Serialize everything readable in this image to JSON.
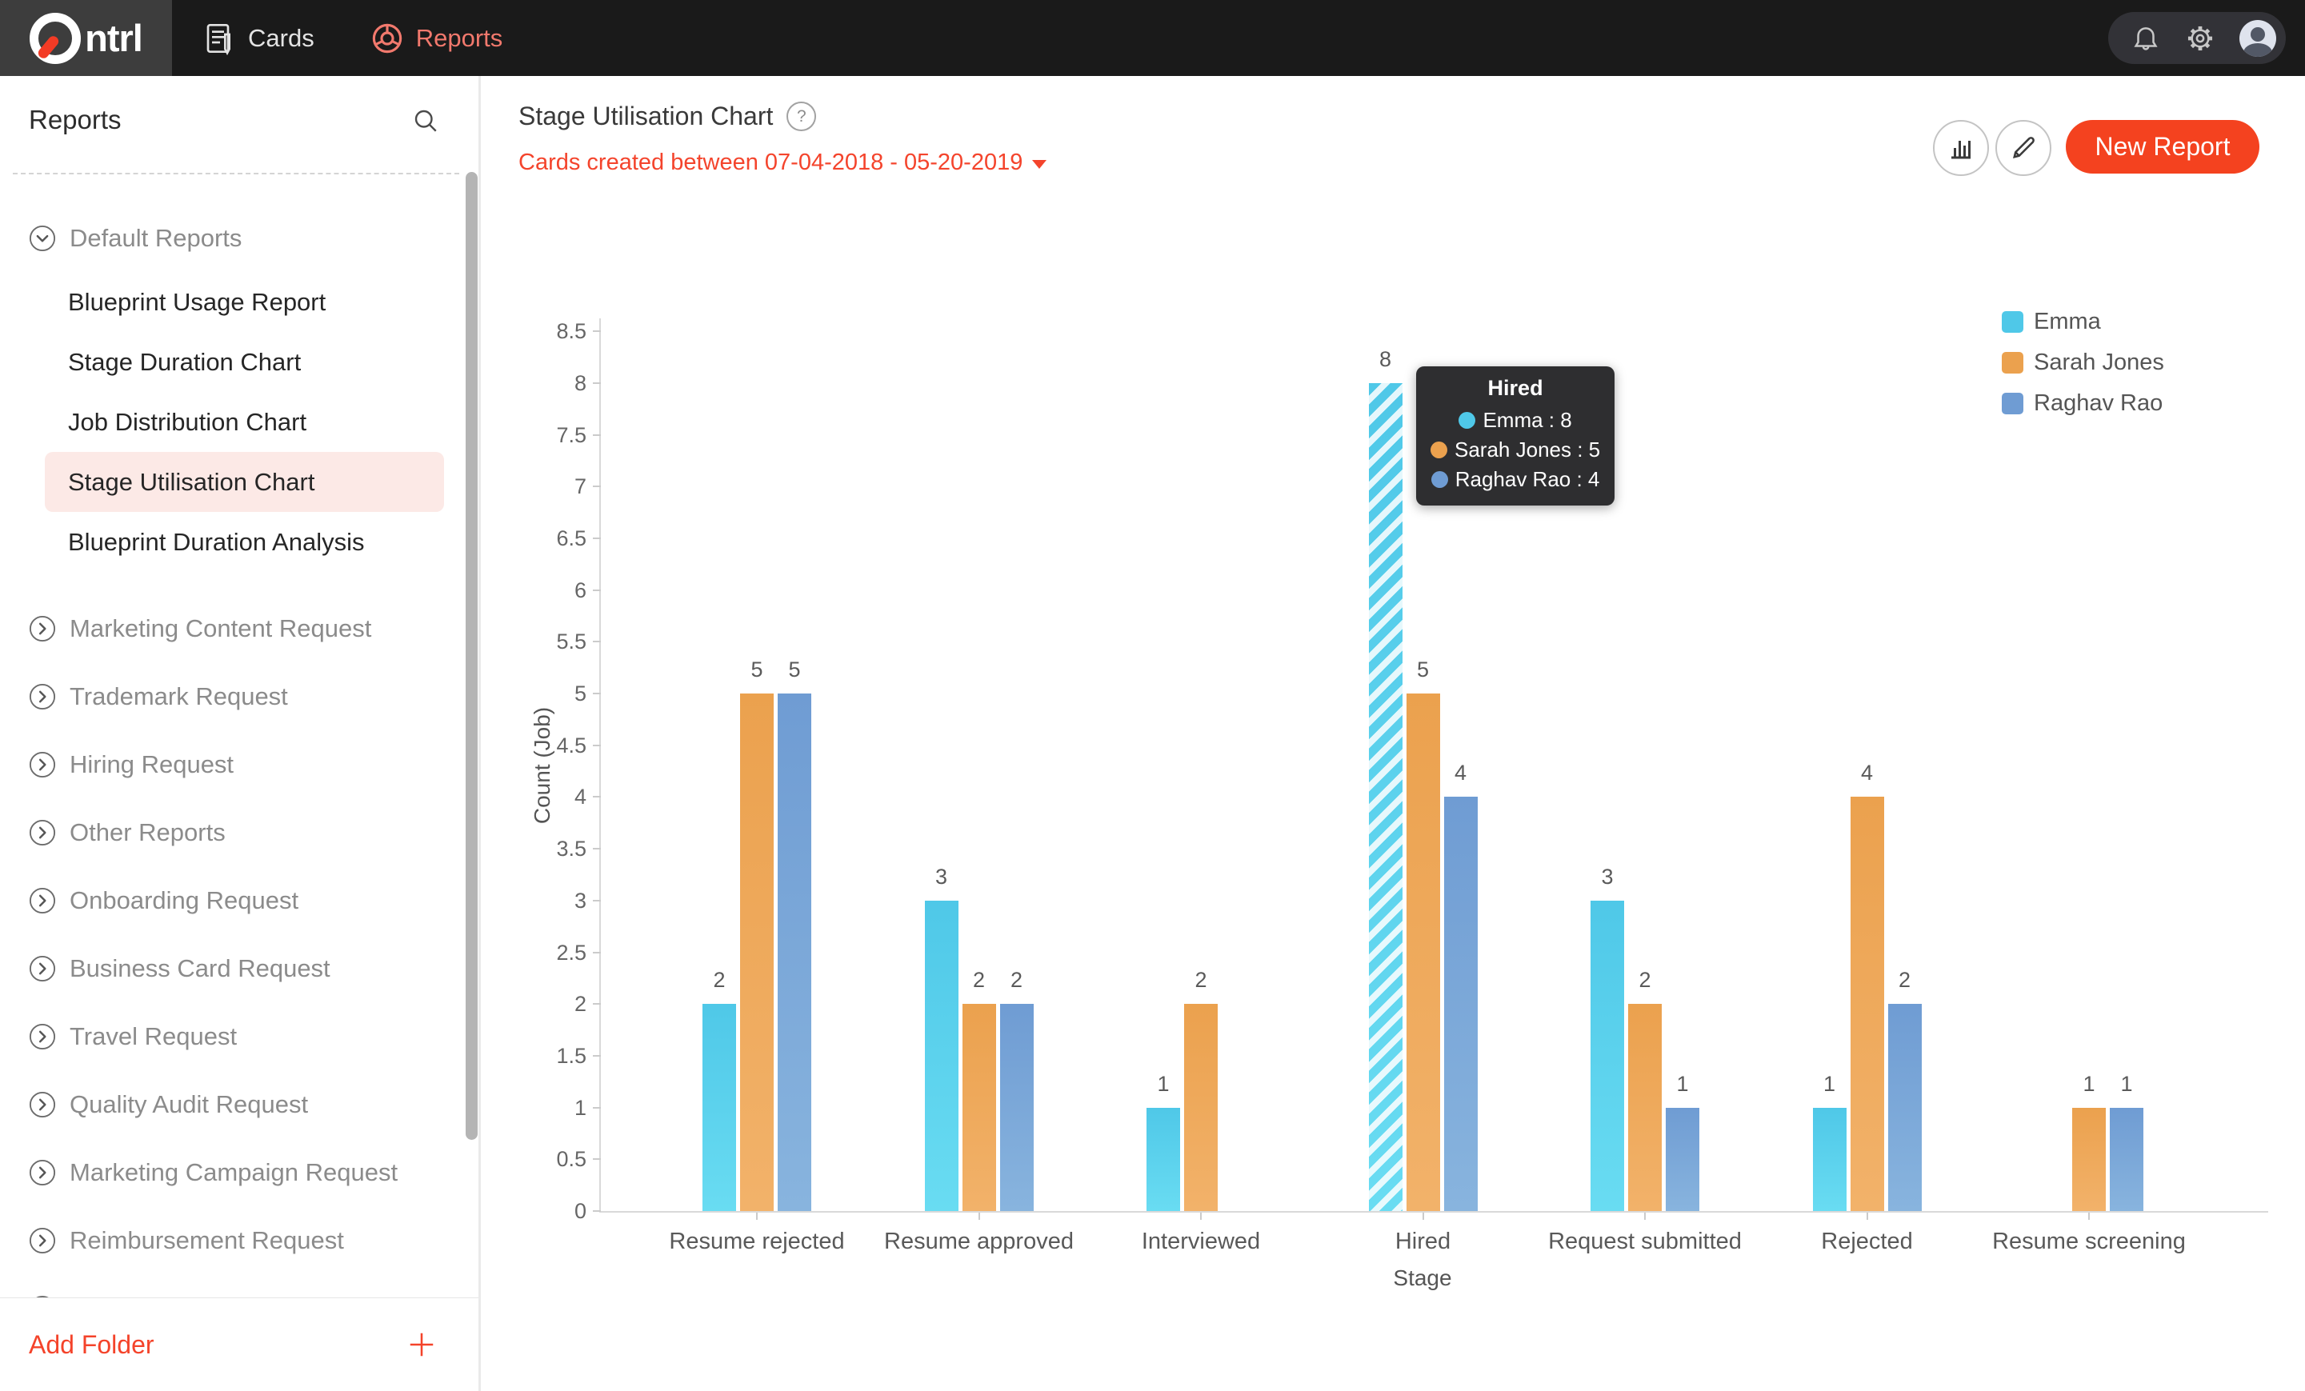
{
  "colors": {
    "accent_red": "#f4432a",
    "new_report_bg": "#f4421f",
    "nav_bg": "#1a1a1a",
    "logo_box_bg": "#3d3d3d",
    "nav_active": "#f2796d",
    "selected_item_bg": "#fce9e6",
    "tooltip_bg": "#2e2e30"
  },
  "topnav": {
    "brand": "Qntrl",
    "brand_suffix": "ntrl",
    "cards_label": "Cards",
    "reports_label": "Reports"
  },
  "sidebar": {
    "title": "Reports",
    "add_folder_label": "Add Folder",
    "items": [
      {
        "label": "Default Reports",
        "type": "group",
        "expanded": true
      },
      {
        "label": "Blueprint Usage Report",
        "type": "child"
      },
      {
        "label": "Stage Duration Chart",
        "type": "child"
      },
      {
        "label": "Job Distribution Chart",
        "type": "child"
      },
      {
        "label": "Stage Utilisation Chart",
        "type": "child",
        "selected": true
      },
      {
        "label": "Blueprint Duration Analysis",
        "type": "child"
      },
      {
        "label": "Marketing Content Request",
        "type": "group"
      },
      {
        "label": "Trademark Request",
        "type": "group"
      },
      {
        "label": "Hiring Request",
        "type": "group"
      },
      {
        "label": "Other Reports",
        "type": "group"
      },
      {
        "label": "Onboarding Request",
        "type": "group"
      },
      {
        "label": "Business Card Request",
        "type": "group"
      },
      {
        "label": "Travel Request",
        "type": "group"
      },
      {
        "label": "Quality Audit Request",
        "type": "group"
      },
      {
        "label": "Marketing Campaign Request",
        "type": "group"
      },
      {
        "label": "Reimbursement Request",
        "type": "group"
      },
      {
        "label": "",
        "type": "group"
      }
    ]
  },
  "header": {
    "title": "Stage Utilisation Chart",
    "subtitle": "Cards created between 07-04-2018 - 05-20-2019",
    "new_report_label": "New Report"
  },
  "chart_data": {
    "type": "bar",
    "title": "Stage Utilisation Chart",
    "xlabel": "Stage",
    "ylabel": "Count (Job)",
    "ylim": [
      0,
      8.5
    ],
    "ytick_step": 0.5,
    "grid": false,
    "legend_position": "top-right",
    "categories": [
      "Resume rejected",
      "Resume approved",
      "Interviewed",
      "Hired",
      "Request submitted",
      "Rejected",
      "Resume screening"
    ],
    "series": [
      {
        "name": "Emma",
        "color": "#4fc8e8",
        "color_light": "#69dcf2",
        "values": [
          2,
          3,
          1,
          8,
          3,
          1,
          null
        ]
      },
      {
        "name": "Sarah Jones",
        "color": "#eba14e",
        "color_light": "#f2b26a",
        "values": [
          5,
          2,
          2,
          5,
          2,
          4,
          1
        ]
      },
      {
        "name": "Raghav Rao",
        "color": "#6f9cd3",
        "color_light": "#88b4de",
        "values": [
          5,
          2,
          null,
          4,
          1,
          2,
          1
        ]
      }
    ],
    "highlighted_bar": {
      "series": "Emma",
      "category": "Hired"
    }
  },
  "tooltip": {
    "title": "Hired",
    "rows": [
      {
        "series": "Emma",
        "value": 8
      },
      {
        "series": "Sarah Jones",
        "value": 5
      },
      {
        "series": "Raghav Rao",
        "value": 4
      }
    ]
  }
}
